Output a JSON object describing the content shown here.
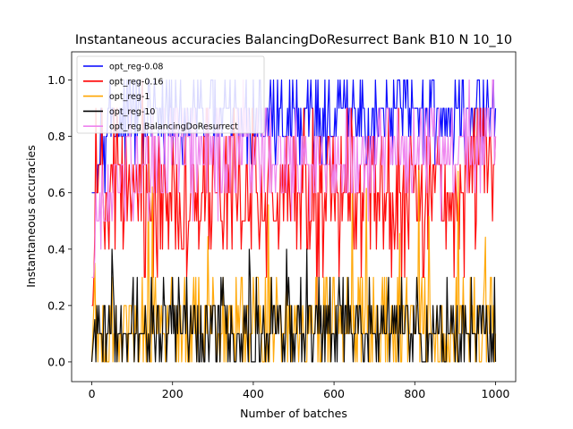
{
  "chart_data": {
    "type": "line",
    "title": "Instantaneous accuracies BalancingDoResurrect Bank B10 N 10_10",
    "xlabel": "Number of batches",
    "ylabel": "Instantaneous accuracies",
    "xlim": [
      -50,
      1050
    ],
    "ylim": [
      -0.07,
      1.1
    ],
    "x_ticks": [
      0,
      200,
      400,
      600,
      800,
      1000
    ],
    "y_ticks": [
      0.0,
      0.2,
      0.4,
      0.6,
      0.8,
      1.0
    ],
    "x_tick_labels": [
      "0",
      "200",
      "400",
      "600",
      "800",
      "1000"
    ],
    "y_tick_labels": [
      "0.0",
      "0.2",
      "0.4",
      "0.6",
      "0.8",
      "1.0"
    ],
    "grid": false,
    "legend_position": "top-left",
    "x_range": [
      0,
      1000
    ],
    "series": [
      {
        "name": "opt_reg-0.08",
        "color": "#0000ff",
        "mean": 0.86,
        "spread": 0.12,
        "min": 0.6,
        "max": 1.0,
        "x": [
          0,
          5,
          10,
          20,
          30,
          50,
          100,
          200,
          300,
          400,
          500,
          600,
          700,
          800,
          900,
          1000
        ],
        "values": [
          0.0,
          0.3,
          0.6,
          0.8,
          0.9,
          0.85,
          0.88,
          0.86,
          0.87,
          0.85,
          0.88,
          0.87,
          0.86,
          0.9,
          0.88,
          0.9
        ]
      },
      {
        "name": "opt_reg-0.16",
        "color": "#ff0000",
        "mean": 0.6,
        "spread": 0.2,
        "min": 0.2,
        "max": 1.0,
        "x": [
          0,
          5,
          10,
          20,
          30,
          50,
          100,
          200,
          300,
          400,
          500,
          600,
          700,
          800,
          900,
          1000
        ],
        "values": [
          0.0,
          0.3,
          0.6,
          0.65,
          0.6,
          0.55,
          0.6,
          0.6,
          0.58,
          0.6,
          0.62,
          0.6,
          0.58,
          0.62,
          0.6,
          0.78
        ]
      },
      {
        "name": "opt_reg-1",
        "color": "#ffa500",
        "mean": 0.12,
        "spread": 0.14,
        "min": 0.0,
        "max": 0.8,
        "x": [
          0,
          5,
          10,
          20,
          30,
          50,
          100,
          200,
          300,
          400,
          500,
          600,
          700,
          800,
          900,
          1000
        ],
        "values": [
          0.0,
          0.2,
          0.5,
          0.2,
          0.15,
          0.1,
          0.12,
          0.1,
          0.12,
          0.1,
          0.12,
          0.1,
          0.12,
          0.1,
          0.12,
          0.2
        ]
      },
      {
        "name": "opt_reg-10",
        "color": "#000000",
        "mean": 0.1,
        "spread": 0.09,
        "min": 0.0,
        "max": 0.4,
        "x": [
          0,
          5,
          10,
          20,
          30,
          50,
          100,
          200,
          300,
          400,
          500,
          600,
          700,
          800,
          900,
          1000
        ],
        "values": [
          0.0,
          0.1,
          0.2,
          0.1,
          0.1,
          0.1,
          0.1,
          0.1,
          0.1,
          0.1,
          0.1,
          0.1,
          0.1,
          0.1,
          0.1,
          0.1
        ]
      },
      {
        "name": "opt_reg BalancingDoResurrect",
        "color": "#ee82ee",
        "mean": 0.72,
        "spread": 0.13,
        "min": 0.3,
        "max": 1.0,
        "x": [
          0,
          5,
          10,
          20,
          30,
          50,
          100,
          200,
          300,
          400,
          500,
          600,
          700,
          800,
          900,
          1000
        ],
        "values": [
          0.0,
          0.3,
          0.45,
          0.55,
          0.6,
          0.65,
          0.7,
          0.72,
          0.72,
          0.74,
          0.74,
          0.72,
          0.74,
          0.76,
          0.75,
          0.85
        ]
      }
    ]
  }
}
